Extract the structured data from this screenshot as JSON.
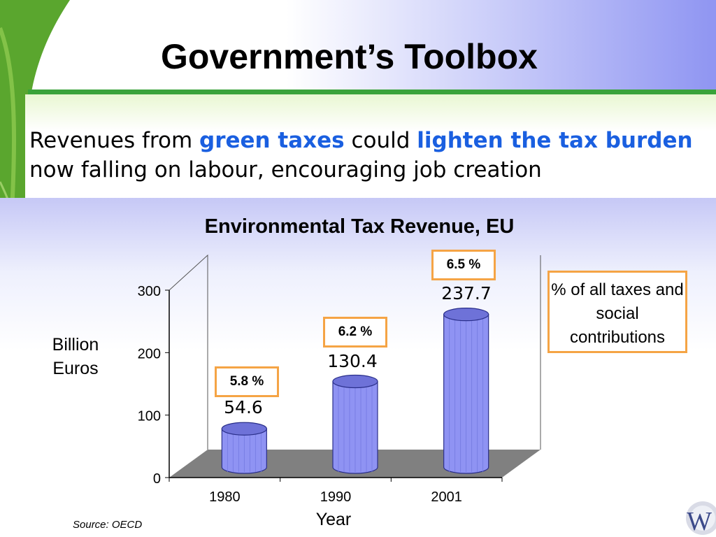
{
  "slide": {
    "title": "Government’s Toolbox",
    "lead": {
      "p1": "Revenues from ",
      "h1": "green taxes",
      "p2": " could ",
      "h2": "lighten the tax burden",
      "p3": " now falling on labour, encouraging job creation"
    },
    "note": "% of all taxes and social contributions",
    "source": "Source: OECD",
    "logo_text": "W"
  },
  "colors": {
    "accent_blue": "#1a5fe0",
    "bar_fill": "#8f93f3",
    "box_border": "#f5a445",
    "header_green": "#3aa33a"
  },
  "chart_data": {
    "type": "bar",
    "title": "Environmental Tax Revenue, EU",
    "xlabel": "Year",
    "ylabel": "Billion Euros",
    "categories": [
      "1980",
      "1990",
      "2001"
    ],
    "values": [
      54.6,
      130.4,
      237.7
    ],
    "value_labels": [
      "54.6",
      "130.4",
      "237.7"
    ],
    "share_labels": [
      "5.8 %",
      "6.2 %",
      "6.5 %"
    ],
    "yticks": [
      "0",
      "100",
      "200",
      "300"
    ],
    "ylim": [
      0,
      300
    ],
    "style": "3d-cylinder",
    "grid": false
  }
}
